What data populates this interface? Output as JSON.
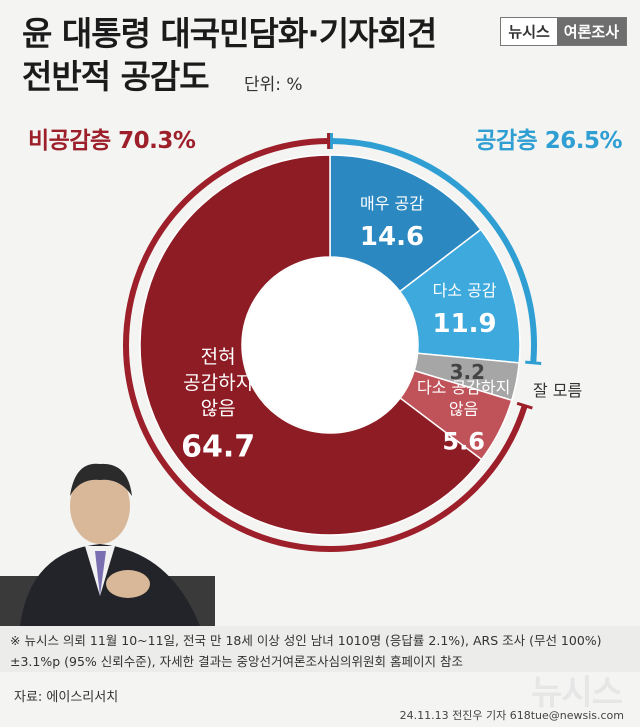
{
  "header": {
    "title_line1": "윤 대통령 대국민담화·기자회견",
    "title_line2": "전반적 공감도",
    "unit": "단위: %",
    "badge_left": "뉴시스",
    "badge_right": "여론조사"
  },
  "groups": {
    "negative": "비공감층 70.3%",
    "positive": "공감층 26.5%"
  },
  "colors": {
    "very_agree": "#2b88c0",
    "somewhat_agree": "#3ea9dd",
    "dont_know": "#a6a6a6",
    "somewhat_disagree": "#c0535a",
    "strongly_disagree": "#8e1c25",
    "positive_accent": "#2f9fd3",
    "negative_accent": "#9c1f2a"
  },
  "chart_data": {
    "type": "pie",
    "categories": [
      "매우 공감",
      "다소 공감",
      "잘 모름",
      "다소 공감하지 않음",
      "전혀 공감하지 않음"
    ],
    "values": [
      14.6,
      11.9,
      3.2,
      5.6,
      64.7
    ],
    "label_lines": [
      [
        "매우 공감"
      ],
      [
        "다소 공감"
      ],
      [
        "잘 모름"
      ],
      [
        "다소 공감하지",
        "않음"
      ],
      [
        "전혀",
        "공감하지",
        "않음"
      ]
    ],
    "value_labels": [
      "14.6",
      "11.9",
      "3.2",
      "5.6",
      "64.7"
    ]
  },
  "footer": {
    "note_line1": "※ 뉴시스 의뢰 11월 10~11일, 전국 만 18세 이상 성인 남녀 1010명 (응답률 2.1%), ARS 조사 (무선 100%)",
    "note_line2": "±3.1%p (95% 신뢰수준), 자세한 결과는 중앙선거여론조사심의위원회 홈페이지 참조",
    "source": "자료: 에이스리서치",
    "credit": "24.11.13 전진우 기자 618tue@newsis.com",
    "watermark": "뉴시스"
  }
}
